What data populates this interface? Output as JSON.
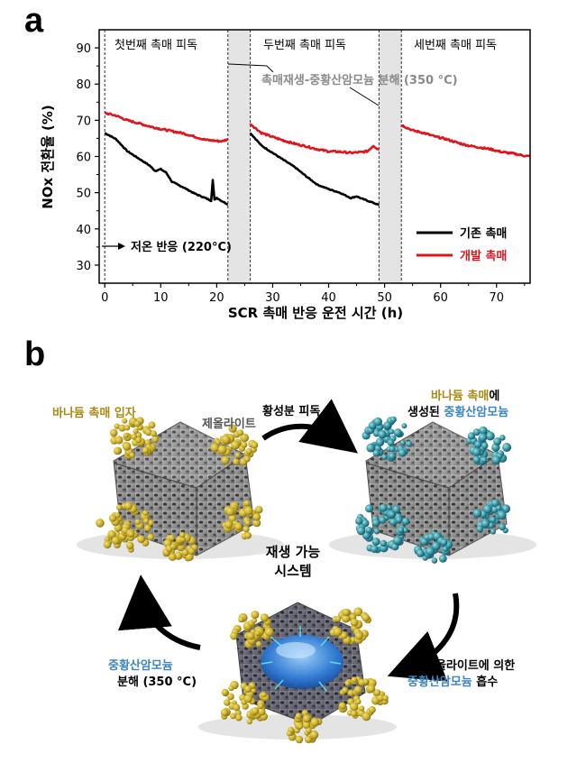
{
  "panel_a": {
    "label": "a",
    "phases": [
      "첫번째 촉매 피독",
      "두번째 촉매 피독",
      "세번째 촉매 피독"
    ],
    "regen_note": "촉매재생-중황산암모늄 분해 (350 °C)",
    "low_temp_note": "저온 반응 (220°C)"
  },
  "panel_b": {
    "label": "b",
    "vanadium_particles": "바나듐 촉매 입자",
    "zeolite": "제올라이트",
    "poisoning_arrow": "황성분 피독",
    "top_right_l1_a": "바나듐 촉매",
    "top_right_l1_b": "에",
    "top_right_l2_a": "생성된 ",
    "top_right_l2_b": "중황산암모늄",
    "center_l1": "재생 가능",
    "center_l2": "시스템",
    "right_l1": "제올라이트에 의한",
    "right_l2_a": "중황산암모늄",
    "right_l2_b": " 흡수",
    "left_l1": "중황산암모늄",
    "left_l2": "분해 (350 °C)"
  },
  "colors": {
    "existing": "#000000",
    "developed": "#e0141c",
    "gold": "#c9ad2a",
    "teal": "#2f8fa3",
    "blue": "#3b86c2"
  },
  "chart_data": {
    "type": "line",
    "xlabel": "SCR 촉매 반응 운전 시간 (h)",
    "ylabel": "NOx 전환율 (%)",
    "xlim": [
      -1,
      76
    ],
    "ylim": [
      25,
      95
    ],
    "xticks": [
      0,
      10,
      20,
      30,
      40,
      50,
      60,
      70
    ],
    "yticks": [
      30,
      40,
      50,
      60,
      70,
      80,
      90
    ],
    "shaded_regions": [
      [
        22,
        26
      ],
      [
        49,
        53
      ]
    ],
    "legend_position": "bottom-right",
    "series": [
      {
        "name": "기존 촉매",
        "color": "#000000",
        "segments": [
          [
            [
              0,
              66.5
            ],
            [
              2,
              64.8
            ],
            [
              4,
              61.5
            ],
            [
              6,
              59.5
            ],
            [
              8,
              57.5
            ],
            [
              9,
              56
            ],
            [
              10,
              56.5
            ],
            [
              11,
              55.5
            ],
            [
              12,
              53
            ],
            [
              14,
              51.5
            ],
            [
              16,
              49.8
            ],
            [
              18,
              48.5
            ],
            [
              19,
              47.8
            ],
            [
              19.3,
              53.5
            ],
            [
              19.6,
              48
            ],
            [
              20,
              48.6
            ],
            [
              21,
              47.6
            ],
            [
              22,
              46.8
            ]
          ],
          [
            [
              26,
              66.5
            ],
            [
              28,
              63
            ],
            [
              30,
              61
            ],
            [
              32,
              59
            ],
            [
              34,
              57
            ],
            [
              36,
              54.5
            ],
            [
              38,
              52.2
            ],
            [
              40,
              51
            ],
            [
              42,
              50
            ],
            [
              44,
              48.5
            ],
            [
              45,
              49
            ],
            [
              46,
              48.3
            ],
            [
              48,
              47.2
            ],
            [
              49,
              46.6
            ]
          ]
        ]
      },
      {
        "name": "개발 촉매",
        "color": "#e0141c",
        "segments": [
          [
            [
              0,
              72
            ],
            [
              2,
              71.3
            ],
            [
              4,
              70
            ],
            [
              6,
              69.2
            ],
            [
              8,
              68.3
            ],
            [
              10,
              67.6
            ],
            [
              12,
              67
            ],
            [
              14,
              66.4
            ],
            [
              16,
              65.5
            ],
            [
              18,
              64.6
            ],
            [
              20,
              64.3
            ],
            [
              21,
              64.2
            ],
            [
              22,
              64.8
            ]
          ],
          [
            [
              26,
              69
            ],
            [
              28,
              66.5
            ],
            [
              30,
              65.4
            ],
            [
              32,
              64.4
            ],
            [
              34,
              63.5
            ],
            [
              36,
              62.8
            ],
            [
              38,
              62
            ],
            [
              40,
              61.4
            ],
            [
              42,
              61.3
            ],
            [
              44,
              61
            ],
            [
              46,
              61.2
            ],
            [
              47,
              61.5
            ],
            [
              48,
              63
            ],
            [
              49,
              61.8
            ]
          ],
          [
            [
              53,
              68.7
            ],
            [
              55,
              67.2
            ],
            [
              57,
              66.5
            ],
            [
              59,
              65.5
            ],
            [
              61,
              64.8
            ],
            [
              63,
              63.8
            ],
            [
              65,
              63
            ],
            [
              67,
              62.5
            ],
            [
              69,
              62
            ],
            [
              71,
              61.2
            ],
            [
              73,
              60.8
            ],
            [
              75,
              60.2
            ],
            [
              76,
              60
            ]
          ]
        ]
      }
    ]
  }
}
